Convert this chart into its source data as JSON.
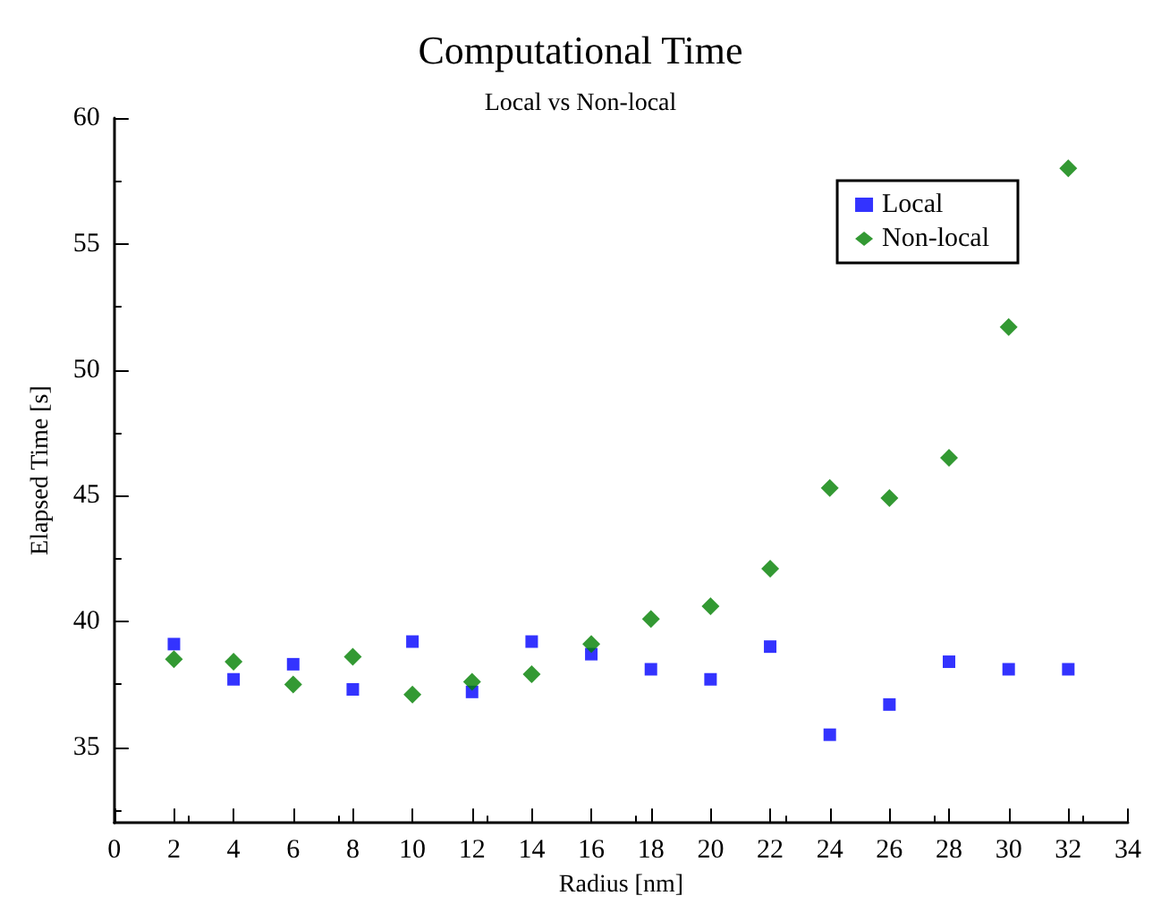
{
  "chart_data": {
    "type": "scatter",
    "title": "Computational Time",
    "subtitle": "Local vs Non-local",
    "xlabel": "Radius [nm]",
    "ylabel": "Elapsed Time [s]",
    "x": [
      2,
      4,
      6,
      8,
      10,
      12,
      14,
      16,
      18,
      20,
      22,
      24,
      26,
      28,
      30,
      32
    ],
    "series": [
      {
        "name": "Local",
        "color": "#0000ff",
        "marker": "square",
        "values": [
          39.1,
          37.7,
          38.3,
          37.3,
          39.2,
          37.2,
          39.2,
          38.7,
          38.1,
          37.7,
          39.0,
          35.5,
          36.7,
          38.4,
          38.1,
          38.1
        ]
      },
      {
        "name": "Non-local",
        "color": "#008000",
        "marker": "diamond",
        "values": [
          38.5,
          38.4,
          37.5,
          38.6,
          37.1,
          37.6,
          37.9,
          39.1,
          40.1,
          40.6,
          42.1,
          45.3,
          44.9,
          46.5,
          51.7,
          58.0
        ]
      }
    ],
    "xlim": [
      0,
      34
    ],
    "xticks": [
      0,
      2,
      4,
      6,
      8,
      10,
      12,
      14,
      16,
      18,
      20,
      22,
      24,
      26,
      28,
      30,
      32,
      34
    ],
    "ylim": [
      32,
      60
    ],
    "yticks": [
      35,
      40,
      45,
      50,
      55,
      60
    ],
    "grid": false,
    "legend": "top right"
  }
}
